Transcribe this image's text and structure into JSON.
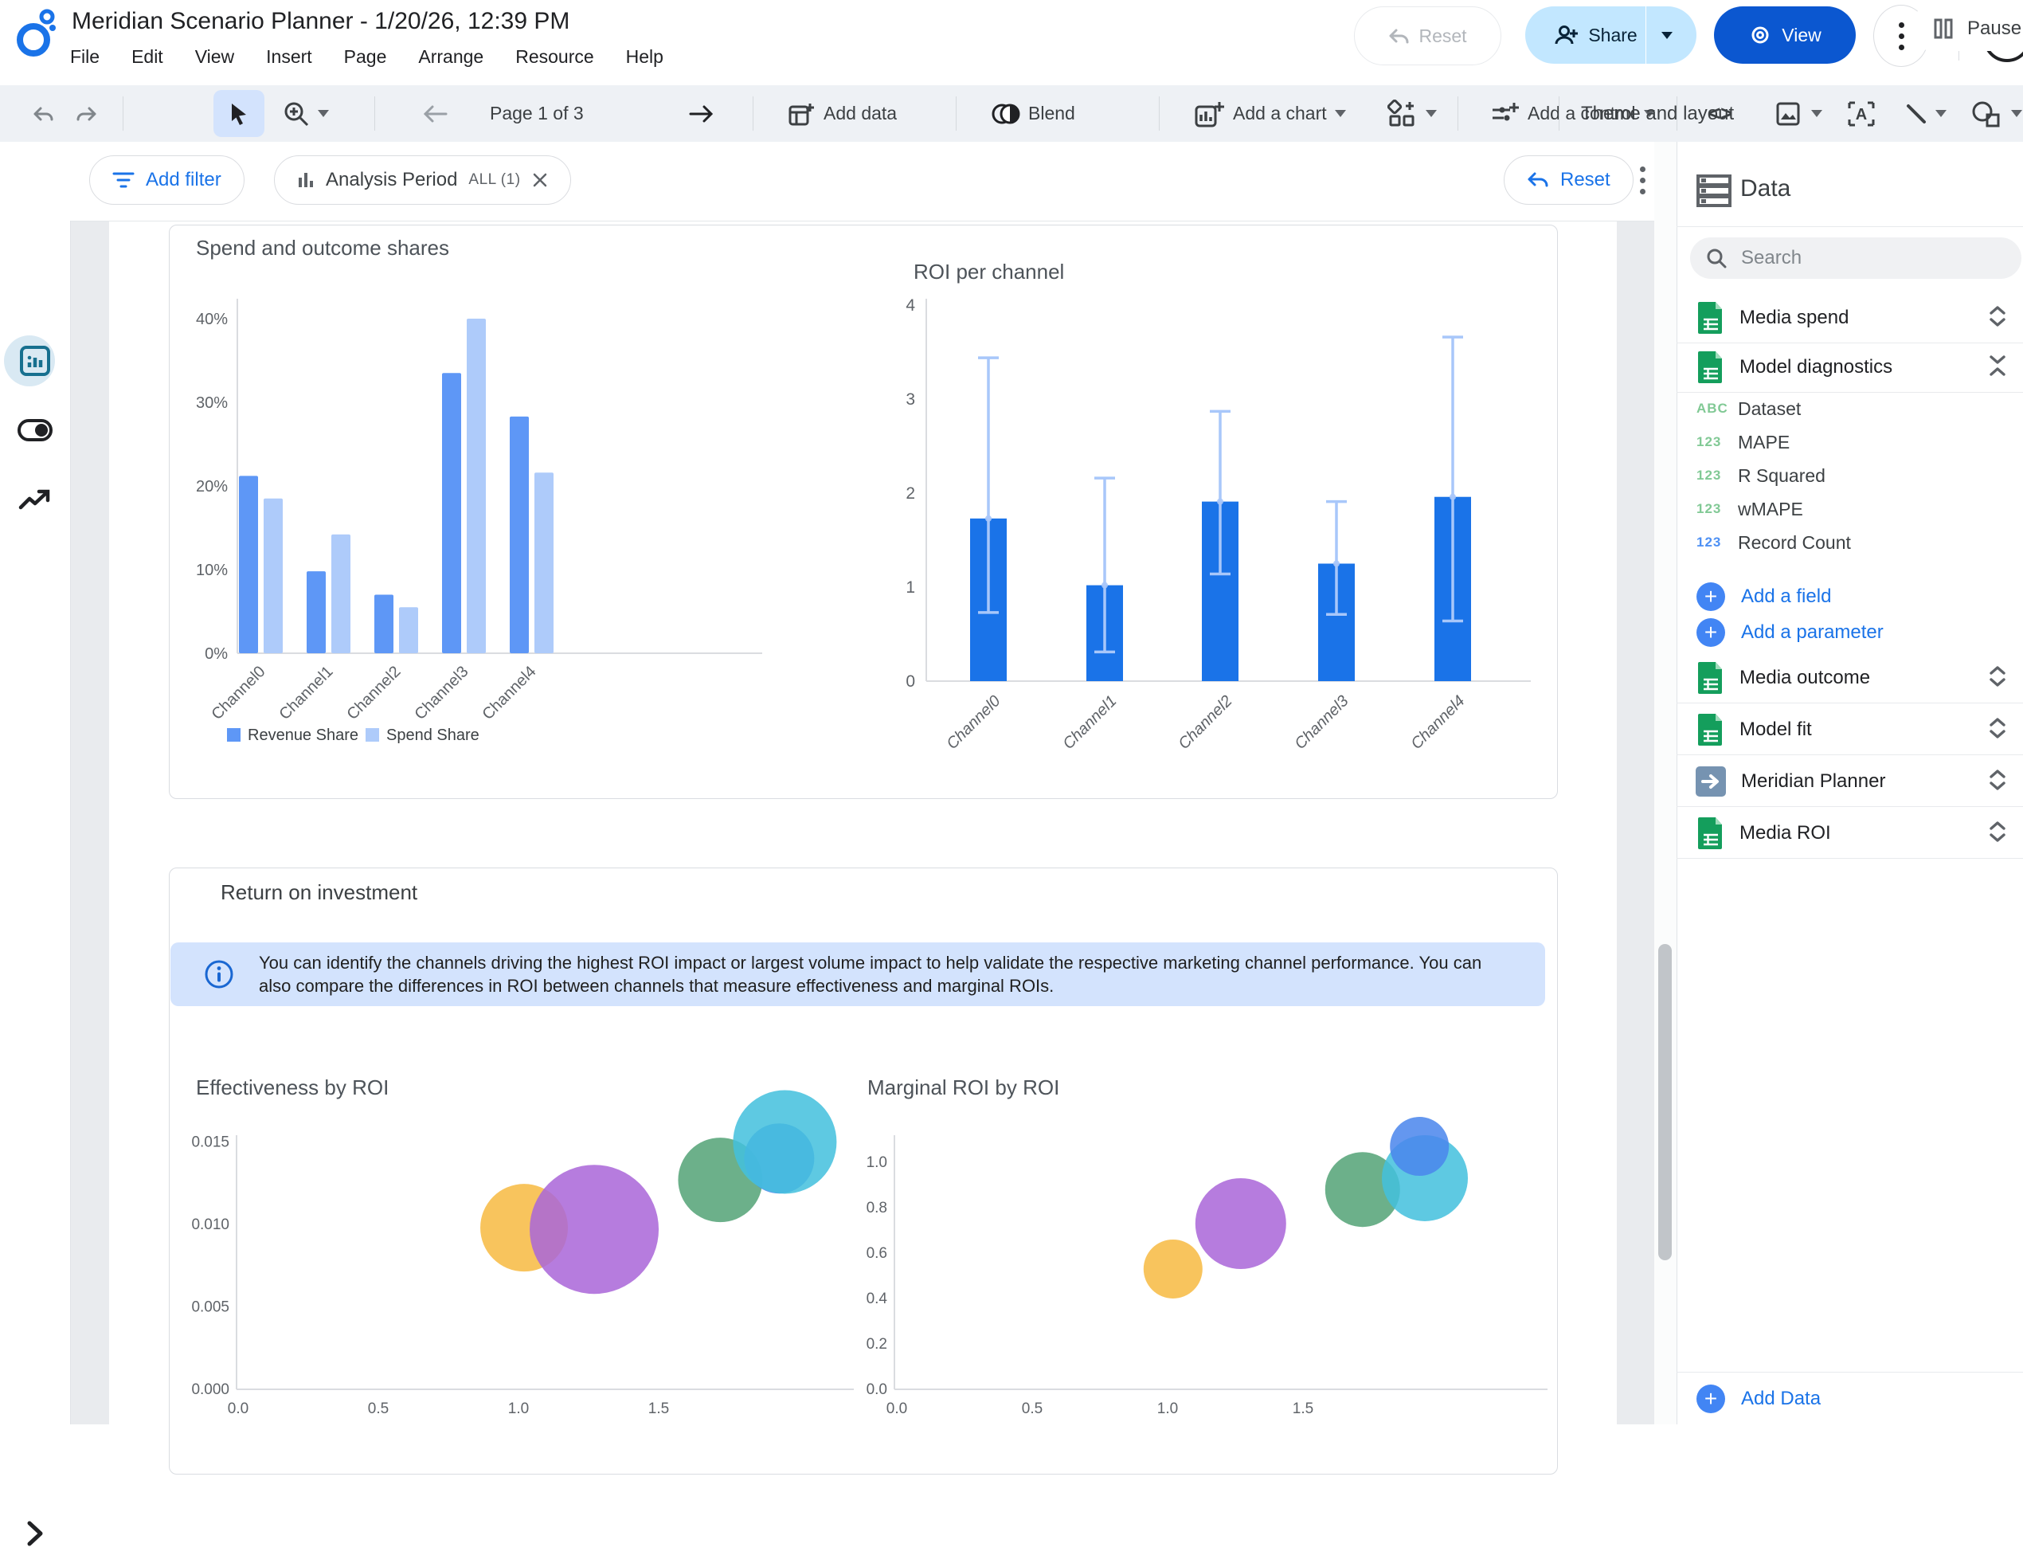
{
  "header": {
    "title": "Meridian Scenario Planner - 1/20/26, 12:39 PM",
    "menus": [
      "File",
      "Edit",
      "View",
      "Insert",
      "Page",
      "Arrange",
      "Resource",
      "Help"
    ],
    "reset_label": "Reset",
    "share_label": "Share",
    "view_label": "View",
    "help_glyph": "?"
  },
  "toolbar": {
    "page_indicator": "Page 1 of 3",
    "add_data_label": "Add data",
    "blend_label": "Blend",
    "add_chart_label": "Add a chart",
    "add_control_label": "Add a control",
    "embed_glyph": "<>",
    "theme_label": "Theme and layout",
    "pause_label": "Pause u"
  },
  "filter_bar": {
    "add_filter_label": "Add filter",
    "chip_label": "Analysis Period",
    "chip_value": "ALL (1)",
    "reset_label": "Reset"
  },
  "section_title": "Return on investment",
  "info_banner": {
    "text": "You can identify the channels driving the highest ROI impact or largest volume impact to help validate the respective marketing channel performance. You can also compare the differences in ROI between channels that measure effectiveness and marginal ROIs."
  },
  "data_panel": {
    "title": "Data",
    "search_placeholder": "Search",
    "sources": [
      {
        "label": "Media spend",
        "icon": "sheet",
        "expanded": false
      },
      {
        "label": "Model diagnostics",
        "icon": "sheet",
        "expanded": true
      },
      {
        "label": "Media outcome",
        "icon": "sheet",
        "expanded": false
      },
      {
        "label": "Model fit",
        "icon": "sheet",
        "expanded": false
      },
      {
        "label": "Meridian Planner",
        "icon": "planner",
        "expanded": false
      },
      {
        "label": "Media ROI",
        "icon": "sheet",
        "expanded": false
      }
    ],
    "diagnostics_fields": [
      {
        "icon": "ABC",
        "color": "#81c995",
        "label": "Dataset"
      },
      {
        "icon": "123",
        "color": "#81c995",
        "label": "MAPE"
      },
      {
        "icon": "123",
        "color": "#81c995",
        "label": "R Squared"
      },
      {
        "icon": "123",
        "color": "#81c995",
        "label": "wMAPE"
      },
      {
        "icon": "123",
        "color": "#4d90f4",
        "label": "Record Count"
      }
    ],
    "add_field_label": "Add a field",
    "add_parameter_label": "Add a parameter",
    "add_data_label": "Add Data"
  },
  "colors": {
    "accent_blue": "#1a73e8",
    "view_button": "#0b57d0",
    "share_button_bg": "#c2e7ff",
    "info_banner_bg": "#d3e3fd",
    "sheet_icon_green": "#149e5c",
    "planner_icon_slate": "#7693b1"
  },
  "chart_data": [
    {
      "type": "bar",
      "title": "Spend and outcome shares",
      "categories": [
        "Channel0",
        "Channel1",
        "Channel2",
        "Channel3",
        "Channel4"
      ],
      "series": [
        {
          "name": "Revenue Share",
          "color": "#5e97f6",
          "values": [
            21.2,
            9.8,
            7.0,
            33.5,
            28.3
          ]
        },
        {
          "name": "Spend Share",
          "color": "#aecbfa",
          "values": [
            18.5,
            14.2,
            5.5,
            40.0,
            21.6
          ]
        }
      ],
      "y_ticks": [
        {
          "v": 0,
          "label": "0%"
        },
        {
          "v": 10,
          "label": "10%"
        },
        {
          "v": 20,
          "label": "20%"
        },
        {
          "v": 30,
          "label": "30%"
        },
        {
          "v": 40,
          "label": "40%"
        }
      ],
      "ylim": [
        0,
        44
      ],
      "grid": false,
      "legend_position": "bottom"
    },
    {
      "type": "bar",
      "title": "ROI per channel",
      "categories": [
        "Channel0",
        "Channel1",
        "Channel2",
        "Channel3",
        "Channel4"
      ],
      "series": [
        {
          "name": "ROI",
          "color": "#1a73e8",
          "values": [
            1.73,
            1.02,
            1.91,
            1.25,
            1.96
          ]
        }
      ],
      "error_low": [
        0.73,
        0.31,
        1.14,
        0.71,
        0.64
      ],
      "error_high": [
        3.44,
        2.16,
        2.87,
        1.91,
        3.66
      ],
      "error_color": "#a8c7fa",
      "y_ticks": [
        {
          "v": 0,
          "label": "0"
        },
        {
          "v": 1,
          "label": "1"
        },
        {
          "v": 2,
          "label": "2"
        },
        {
          "v": 3,
          "label": "3"
        },
        {
          "v": 4,
          "label": "4"
        }
      ],
      "ylim": [
        0,
        4
      ],
      "grid": false
    },
    {
      "type": "scatter",
      "title": "Effectiveness by ROI",
      "xlim": [
        0,
        2.1
      ],
      "ylim": [
        0,
        0.0165
      ],
      "x_ticks": [
        {
          "v": 0,
          "label": "0.0"
        },
        {
          "v": 0.5,
          "label": "0.5"
        },
        {
          "v": 1,
          "label": "1.0"
        },
        {
          "v": 1.5,
          "label": "1.5"
        }
      ],
      "y_ticks": [
        {
          "v": 0,
          "label": "0.000"
        },
        {
          "v": 0.005,
          "label": "0.005"
        },
        {
          "v": 0.01,
          "label": "0.010"
        },
        {
          "v": 0.015,
          "label": "0.015"
        }
      ],
      "points": [
        {
          "x": 1.02,
          "y": 0.0098,
          "r": 55,
          "color": "#f7ba42"
        },
        {
          "x": 1.27,
          "y": 0.0097,
          "r": 81,
          "color": "#aa66d9"
        },
        {
          "x": 1.72,
          "y": 0.0127,
          "r": 53,
          "color": "#54a377"
        },
        {
          "x": 1.93,
          "y": 0.014,
          "r": 44,
          "color": "#4a86ec"
        },
        {
          "x": 1.95,
          "y": 0.015,
          "r": 65,
          "color": "#44c0dd"
        }
      ]
    },
    {
      "type": "scatter",
      "title": "Marginal ROI by ROI",
      "xlim": [
        0,
        2.1
      ],
      "ylim": [
        0,
        1.15
      ],
      "x_ticks": [
        {
          "v": 0,
          "label": "0.0"
        },
        {
          "v": 0.5,
          "label": "0.5"
        },
        {
          "v": 1,
          "label": "1.0"
        },
        {
          "v": 1.5,
          "label": "1.5"
        }
      ],
      "y_ticks": [
        {
          "v": 0,
          "label": "0.0"
        },
        {
          "v": 0.2,
          "label": "0.2"
        },
        {
          "v": 0.4,
          "label": "0.4"
        },
        {
          "v": 0.6,
          "label": "0.6"
        },
        {
          "v": 0.8,
          "label": "0.8"
        },
        {
          "v": 1,
          "label": "1.0"
        }
      ],
      "points": [
        {
          "x": 1.02,
          "y": 0.53,
          "r": 37,
          "color": "#f7ba42"
        },
        {
          "x": 1.27,
          "y": 0.73,
          "r": 57,
          "color": "#aa66d9"
        },
        {
          "x": 1.72,
          "y": 0.88,
          "r": 47,
          "color": "#54a377"
        },
        {
          "x": 1.95,
          "y": 0.93,
          "r": 54,
          "color": "#44c0dd"
        },
        {
          "x": 1.93,
          "y": 1.07,
          "r": 37,
          "color": "#4a86ec"
        }
      ]
    }
  ]
}
